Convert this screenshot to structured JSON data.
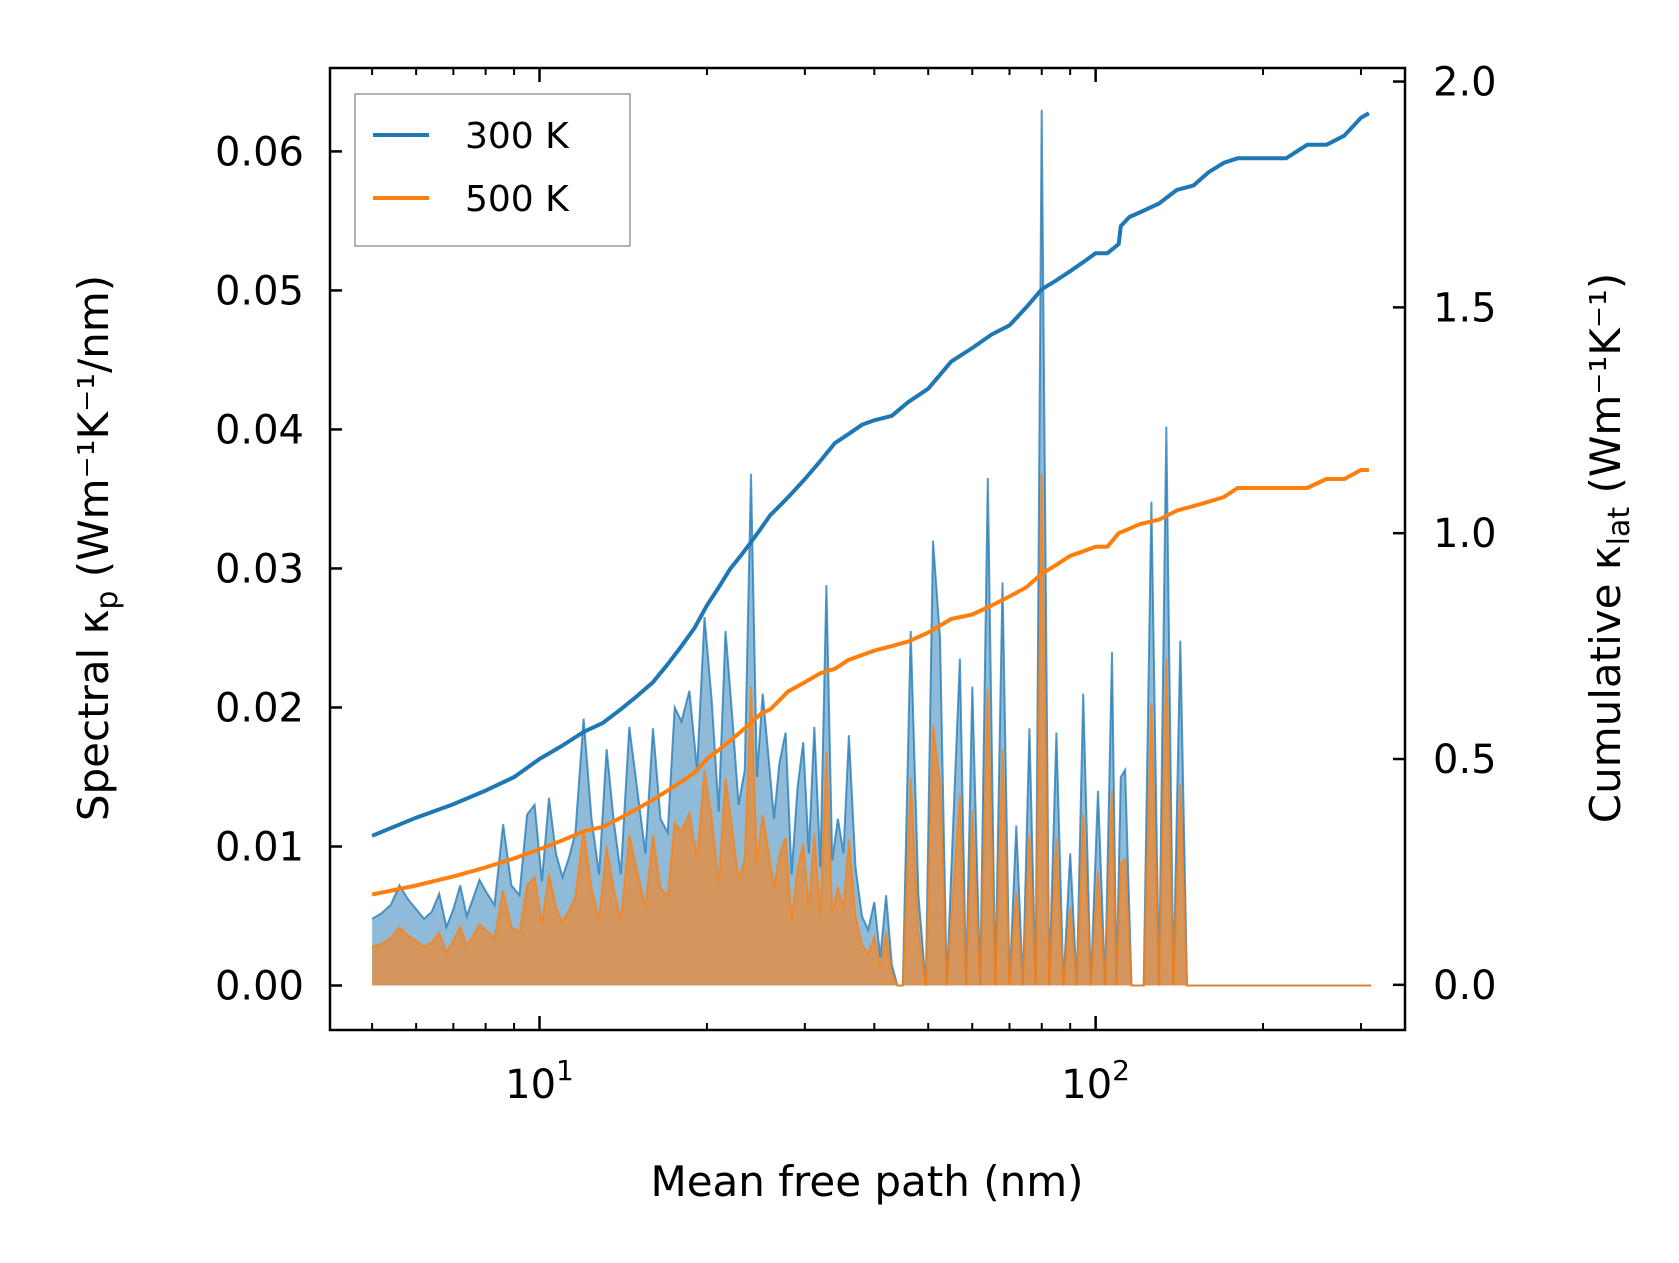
{
  "chart_data": {
    "type": "line",
    "xscale": "log",
    "xlabel": "Mean free path (nm)",
    "x_tick_labels": [
      {
        "base": "10",
        "exp": "1",
        "value": 10
      },
      {
        "base": "10",
        "exp": "2",
        "value": 100
      }
    ],
    "xlim": [
      4.2,
      360
    ],
    "left_axis": {
      "label_main": "Spectral κ",
      "label_sub": "p",
      "label_unit": " (Wm⁻¹K⁻¹/nm)",
      "ylim": [
        -0.0032,
        0.066
      ],
      "ticks": [
        0.0,
        0.01,
        0.02,
        0.03,
        0.04,
        0.05,
        0.06
      ],
      "tick_labels": [
        "0.00",
        "0.01",
        "0.02",
        "0.03",
        "0.04",
        "0.05",
        "0.06"
      ]
    },
    "right_axis": {
      "label_main": "Cumulative κ",
      "label_sub": "lat",
      "label_unit": " (Wm⁻¹K⁻¹)",
      "ylim": [
        -0.1,
        2.03
      ],
      "ticks": [
        0.0,
        0.5,
        1.0,
        1.5,
        2.0
      ],
      "tick_labels": [
        "0.0",
        "0.5",
        "1.0",
        "1.5",
        "2.0"
      ]
    },
    "legend": {
      "position": "top-left",
      "entries": [
        "300 K",
        "500 K"
      ]
    },
    "series": [
      {
        "name": "300 K",
        "color": "#1f77b4",
        "cumulative": {
          "x": [
            5,
            6,
            7,
            8,
            9,
            10,
            11,
            12,
            13,
            14,
            15,
            16,
            17,
            18,
            19,
            20,
            21,
            22,
            23,
            24,
            25,
            26,
            27,
            28,
            29,
            30,
            32,
            34,
            36,
            38,
            40,
            43,
            46,
            50,
            55,
            60,
            65,
            70,
            75,
            80,
            85,
            90,
            95,
            100,
            105,
            110,
            111,
            115,
            120,
            130,
            140,
            150,
            160,
            170,
            180,
            200,
            220,
            240,
            260,
            280,
            300,
            310
          ],
          "y": [
            0.33,
            0.37,
            0.4,
            0.43,
            0.46,
            0.5,
            0.53,
            0.56,
            0.58,
            0.61,
            0.64,
            0.67,
            0.71,
            0.75,
            0.79,
            0.84,
            0.88,
            0.92,
            0.95,
            0.98,
            1.01,
            1.04,
            1.06,
            1.08,
            1.1,
            1.12,
            1.16,
            1.2,
            1.22,
            1.24,
            1.25,
            1.26,
            1.29,
            1.32,
            1.38,
            1.41,
            1.44,
            1.46,
            1.5,
            1.54,
            1.56,
            1.58,
            1.6,
            1.62,
            1.62,
            1.64,
            1.68,
            1.7,
            1.71,
            1.73,
            1.76,
            1.77,
            1.8,
            1.82,
            1.83,
            1.83,
            1.83,
            1.86,
            1.86,
            1.88,
            1.92,
            1.93
          ]
        },
        "spectral": {
          "x": [
            5.0,
            5.2,
            5.4,
            5.6,
            5.8,
            6.0,
            6.2,
            6.4,
            6.6,
            6.8,
            7.0,
            7.2,
            7.4,
            7.6,
            7.8,
            8.0,
            8.3,
            8.6,
            8.9,
            9.2,
            9.5,
            9.8,
            10.1,
            10.4,
            10.7,
            11.0,
            11.3,
            11.6,
            12.0,
            12.4,
            12.8,
            13.2,
            13.6,
            14.0,
            14.5,
            15.0,
            15.5,
            16.0,
            16.5,
            17.0,
            17.5,
            18.0,
            18.6,
            19.2,
            19.8,
            20.4,
            21.0,
            21.6,
            22.2,
            22.8,
            23.4,
            24.0,
            24.6,
            25.2,
            25.8,
            26.4,
            27.0,
            27.7,
            28.4,
            29.1,
            29.8,
            30.5,
            31.2,
            32.0,
            32.8,
            33.6,
            34.4,
            35.2,
            36.0,
            37.0,
            38.0,
            39.0,
            40.0,
            41.0,
            42.0,
            43.0,
            44.0,
            45.0,
            46.5,
            48.0,
            49.5,
            51.0,
            52.5,
            54.0,
            55.5,
            57.0,
            58.5,
            60.0,
            62.0,
            64.0,
            66.0,
            68.0,
            70.0,
            72.0,
            74.0,
            76.0,
            78.0,
            80.0,
            82.5,
            85.0,
            87.5,
            90.0,
            92.5,
            95.0,
            98.0,
            101.0,
            104.0,
            107.0,
            109.0,
            111.0,
            113.0,
            116.0,
            119.0,
            122.0,
            126.0,
            130.0,
            134.0,
            138.0,
            142.0,
            146.0,
            150.0,
            155.0,
            160.0,
            165.0,
            170.0,
            175.0,
            180.0,
            186.0,
            192.0,
            198.0,
            210.0,
            225.0,
            235.0,
            240.0,
            245.0,
            255.0,
            265.0,
            275.0,
            280.0,
            285.0,
            295.0,
            303.0,
            308.0,
            313.0
          ],
          "y": [
            0.0048,
            0.0052,
            0.0058,
            0.0072,
            0.0062,
            0.0055,
            0.0048,
            0.0053,
            0.0066,
            0.0042,
            0.0055,
            0.0072,
            0.005,
            0.0063,
            0.0076,
            0.0068,
            0.0058,
            0.0116,
            0.0072,
            0.0065,
            0.0123,
            0.013,
            0.0075,
            0.0135,
            0.0095,
            0.0078,
            0.0092,
            0.011,
            0.0192,
            0.012,
            0.008,
            0.017,
            0.0118,
            0.008,
            0.0186,
            0.014,
            0.0095,
            0.0185,
            0.012,
            0.011,
            0.02,
            0.019,
            0.0212,
            0.0155,
            0.0265,
            0.0205,
            0.0125,
            0.0255,
            0.0195,
            0.013,
            0.0155,
            0.0368,
            0.015,
            0.021,
            0.0165,
            0.012,
            0.016,
            0.0182,
            0.008,
            0.0142,
            0.0175,
            0.0095,
            0.0186,
            0.0085,
            0.0288,
            0.009,
            0.012,
            0.0095,
            0.018,
            0.0085,
            0.005,
            0.004,
            0.006,
            0.002,
            0.0065,
            0.0015,
            0.0,
            0.0,
            0.0255,
            0.0065,
            0.0,
            0.032,
            0.025,
            0.0,
            0.012,
            0.0235,
            0.0,
            0.0215,
            0.0,
            0.0365,
            0.0,
            0.029,
            0.0,
            0.0115,
            0.0,
            0.0185,
            0.0,
            0.063,
            0.0,
            0.0182,
            0.0,
            0.0095,
            0.0,
            0.021,
            0.0,
            0.014,
            0.0,
            0.024,
            0.0,
            0.015,
            0.0155,
            0.0,
            0.0,
            0.0,
            0.0348,
            0.0,
            0.0402,
            0.0,
            0.0248,
            0.0,
            0.0,
            0.0,
            0.0,
            0.0,
            0.0,
            0.0,
            0.0,
            0.0,
            0.0,
            0.0,
            0.0,
            0.0,
            0.0,
            0.0,
            0.0,
            0.0,
            0.0,
            0.0,
            0.0,
            0.0,
            0.0,
            0.0,
            0.0,
            0.0
          ]
        }
      },
      {
        "name": "500 K",
        "color": "#ff7f0e",
        "cumulative": {
          "x": [
            5,
            6,
            7,
            8,
            9,
            10,
            11,
            12,
            13,
            14,
            15,
            16,
            17,
            18,
            19,
            20,
            21,
            22,
            23,
            24,
            25,
            26,
            27,
            28,
            29,
            30,
            32,
            34,
            36,
            38,
            40,
            43,
            46,
            50,
            55,
            60,
            65,
            70,
            75,
            80,
            85,
            90,
            95,
            100,
            105,
            110,
            115,
            120,
            130,
            140,
            150,
            160,
            170,
            180,
            200,
            220,
            240,
            260,
            280,
            300,
            310
          ],
          "y": [
            0.2,
            0.22,
            0.24,
            0.26,
            0.28,
            0.3,
            0.32,
            0.34,
            0.35,
            0.37,
            0.39,
            0.41,
            0.43,
            0.45,
            0.47,
            0.5,
            0.52,
            0.54,
            0.56,
            0.58,
            0.6,
            0.61,
            0.63,
            0.65,
            0.66,
            0.67,
            0.69,
            0.7,
            0.72,
            0.73,
            0.74,
            0.75,
            0.76,
            0.78,
            0.81,
            0.82,
            0.84,
            0.86,
            0.88,
            0.91,
            0.93,
            0.95,
            0.96,
            0.97,
            0.97,
            1.0,
            1.01,
            1.02,
            1.03,
            1.05,
            1.06,
            1.07,
            1.08,
            1.1,
            1.1,
            1.1,
            1.1,
            1.12,
            1.12,
            1.14,
            1.14
          ]
        },
        "spectral": {
          "x": [
            5.0,
            5.2,
            5.4,
            5.6,
            5.8,
            6.0,
            6.2,
            6.4,
            6.6,
            6.8,
            7.0,
            7.2,
            7.4,
            7.6,
            7.8,
            8.0,
            8.3,
            8.6,
            8.9,
            9.2,
            9.5,
            9.8,
            10.1,
            10.4,
            10.7,
            11.0,
            11.3,
            11.6,
            12.0,
            12.4,
            12.8,
            13.2,
            13.6,
            14.0,
            14.5,
            15.0,
            15.5,
            16.0,
            16.5,
            17.0,
            17.5,
            18.0,
            18.6,
            19.2,
            19.8,
            20.4,
            21.0,
            21.6,
            22.2,
            22.8,
            23.4,
            24.0,
            24.6,
            25.2,
            25.8,
            26.4,
            27.0,
            27.7,
            28.4,
            29.1,
            29.8,
            30.5,
            31.2,
            32.0,
            32.8,
            33.6,
            34.4,
            35.2,
            36.0,
            37.0,
            38.0,
            39.0,
            40.0,
            41.0,
            42.0,
            43.0,
            44.0,
            45.0,
            46.5,
            48.0,
            49.5,
            51.0,
            52.5,
            54.0,
            55.5,
            57.0,
            58.5,
            60.0,
            62.0,
            64.0,
            66.0,
            68.0,
            70.0,
            72.0,
            74.0,
            76.0,
            78.0,
            80.0,
            82.5,
            85.0,
            87.5,
            90.0,
            92.5,
            95.0,
            98.0,
            101.0,
            104.0,
            107.0,
            109.0,
            111.0,
            113.0,
            116.0,
            119.0,
            122.0,
            126.0,
            130.0,
            134.0,
            138.0,
            142.0,
            146.0,
            150.0,
            155.0,
            160.0,
            165.0,
            170.0,
            175.0,
            180.0,
            186.0,
            192.0,
            198.0,
            210.0,
            225.0,
            235.0,
            240.0,
            245.0,
            255.0,
            265.0,
            275.0,
            280.0,
            285.0,
            295.0,
            303.0,
            308.0,
            313.0
          ],
          "y": [
            0.0028,
            0.003,
            0.0034,
            0.0042,
            0.0036,
            0.0032,
            0.0028,
            0.0031,
            0.0038,
            0.0024,
            0.0032,
            0.0042,
            0.0029,
            0.0036,
            0.0044,
            0.004,
            0.0034,
            0.0068,
            0.0042,
            0.0038,
            0.0072,
            0.0078,
            0.0044,
            0.008,
            0.0056,
            0.0046,
            0.0054,
            0.0064,
            0.0112,
            0.007,
            0.0047,
            0.01,
            0.0069,
            0.0047,
            0.0108,
            0.0082,
            0.0056,
            0.0108,
            0.007,
            0.0064,
            0.0117,
            0.0111,
            0.0124,
            0.0091,
            0.0155,
            0.012,
            0.0073,
            0.0149,
            0.0114,
            0.0076,
            0.0091,
            0.0215,
            0.0088,
            0.0123,
            0.0097,
            0.007,
            0.0094,
            0.0106,
            0.0047,
            0.0083,
            0.0102,
            0.0056,
            0.0109,
            0.005,
            0.0168,
            0.0053,
            0.007,
            0.0056,
            0.0105,
            0.005,
            0.0029,
            0.0023,
            0.0035,
            0.0012,
            0.0038,
            0.0009,
            0.0,
            0.0,
            0.0149,
            0.0038,
            0.0,
            0.0187,
            0.0146,
            0.0,
            0.007,
            0.0137,
            0.0,
            0.0126,
            0.0,
            0.0213,
            0.0,
            0.017,
            0.0,
            0.0067,
            0.0,
            0.0108,
            0.0,
            0.0368,
            0.0,
            0.0106,
            0.0,
            0.0056,
            0.0,
            0.0123,
            0.0,
            0.0082,
            0.0,
            0.014,
            0.0,
            0.0088,
            0.0091,
            0.0,
            0.0,
            0.0,
            0.0203,
            0.0,
            0.0235,
            0.0,
            0.0145,
            0.0,
            0.0,
            0.0,
            0.0,
            0.0,
            0.0,
            0.0,
            0.0,
            0.0,
            0.0,
            0.0,
            0.0,
            0.0,
            0.0,
            0.0,
            0.0,
            0.0,
            0.0,
            0.0,
            0.0,
            0.0,
            0.0,
            0.0,
            0.0,
            0.0
          ]
        }
      }
    ]
  }
}
